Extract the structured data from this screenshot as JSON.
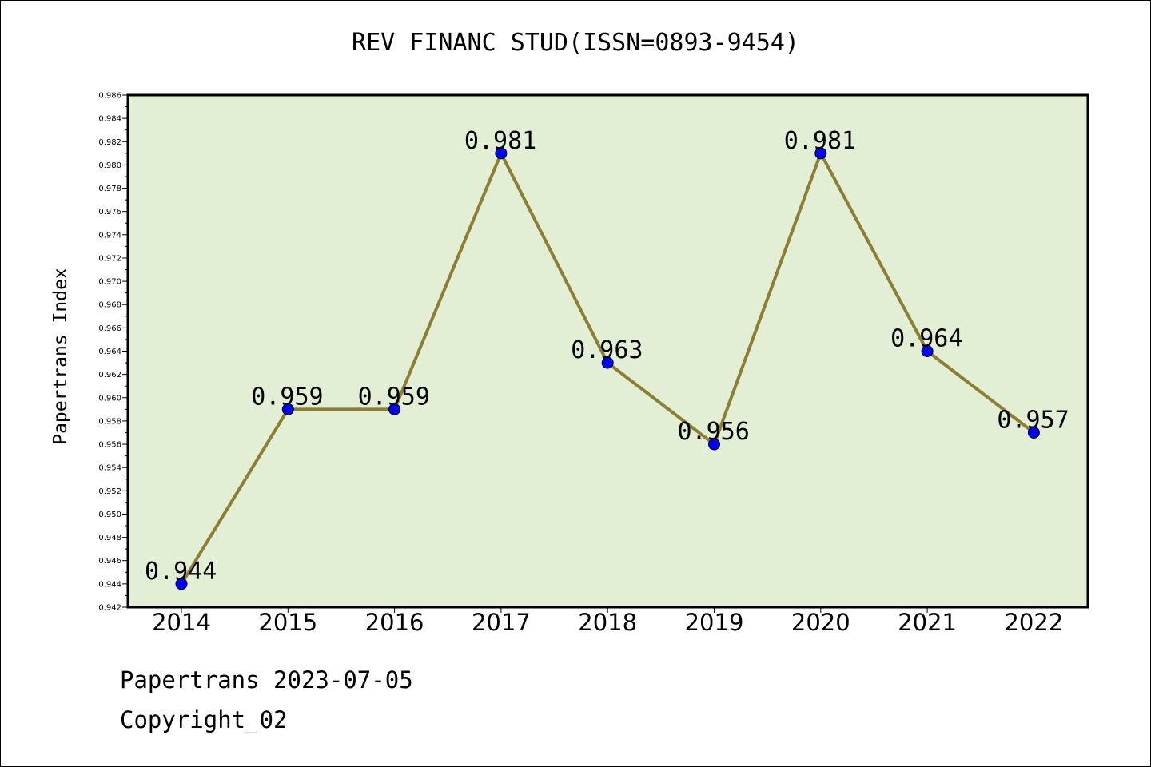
{
  "chart_data": {
    "type": "line",
    "title": "REV FINANC STUD(ISSN=0893-9454)",
    "xlabel": "",
    "ylabel": "Papertrans Index",
    "categories": [
      "2014",
      "2015",
      "2016",
      "2017",
      "2018",
      "2019",
      "2020",
      "2021",
      "2022"
    ],
    "values": [
      0.944,
      0.959,
      0.959,
      0.981,
      0.963,
      0.956,
      0.981,
      0.964,
      0.957
    ],
    "data_labels": [
      "0.944",
      "0.959",
      "0.959",
      "0.981",
      "0.963",
      "0.956",
      "0.981",
      "0.964",
      "0.957"
    ],
    "ylim": [
      0.942,
      0.986
    ],
    "y_ticks": [
      "0.942",
      "0.944",
      "0.946",
      "0.948",
      "0.950",
      "0.952",
      "0.954",
      "0.956",
      "0.958",
      "0.960",
      "0.962",
      "0.964",
      "0.966",
      "0.968",
      "0.970",
      "0.972",
      "0.974",
      "0.976",
      "0.978",
      "0.980",
      "0.982",
      "0.984",
      "0.986"
    ],
    "grid": false,
    "colors": {
      "plot_background": "#e2efd5",
      "line": "#8c7f34",
      "marker": "#0000ff"
    }
  },
  "footer": {
    "line1": "Papertrans 2023-07-05",
    "line2": "Copyright_02"
  }
}
